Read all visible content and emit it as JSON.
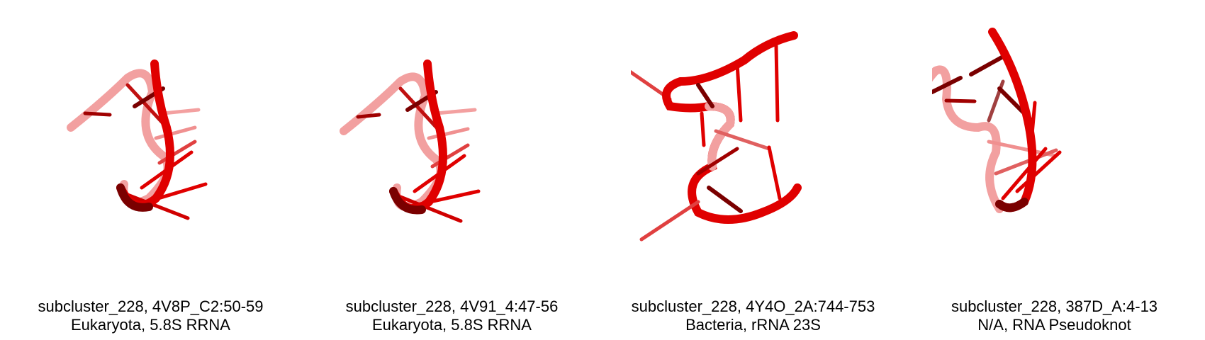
{
  "colors": {
    "strand": "#e00000",
    "strand_dark": "#7a0000",
    "strand_faded": "#f07070",
    "background": "#ffffff",
    "caption_text": "#000000"
  },
  "panels": [
    {
      "line1": "subcluster_228, 4V8P_C2:50-59",
      "line2": "Eukaryota, 5.8S RRNA"
    },
    {
      "line1": "subcluster_228, 4V91_4:47-56",
      "line2": "Eukaryota, 5.8S RRNA"
    },
    {
      "line1": "subcluster_228, 4Y4O_2A:744-753",
      "line2": "Bacteria, rRNA 23S"
    },
    {
      "line1": "subcluster_228, 387D_A:4-13",
      "line2": "N/A, RNA Pseudoknot"
    }
  ]
}
